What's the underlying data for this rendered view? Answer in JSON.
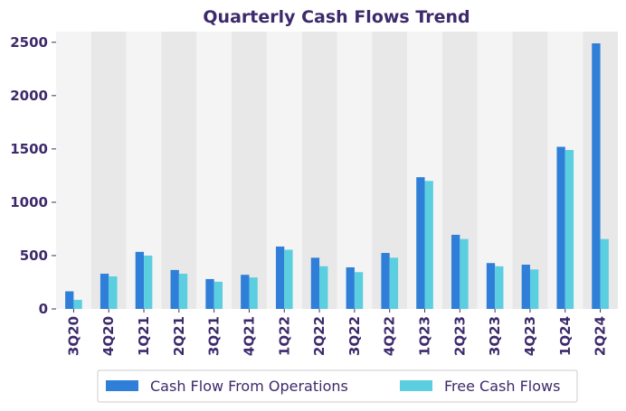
{
  "chart_data": {
    "type": "bar",
    "title": "Quarterly Cash Flows Trend",
    "xlabel": "",
    "ylabel": "",
    "categories": [
      "3Q20",
      "4Q20",
      "1Q21",
      "2Q21",
      "3Q21",
      "4Q21",
      "1Q22",
      "2Q22",
      "3Q22",
      "4Q22",
      "1Q23",
      "2Q23",
      "3Q23",
      "4Q23",
      "1Q24",
      "2Q24"
    ],
    "series": [
      {
        "name": "Cash Flow From Operations",
        "color": "#2f7fd8",
        "values": [
          165,
          330,
          535,
          365,
          280,
          320,
          585,
          480,
          390,
          525,
          1235,
          695,
          430,
          415,
          1520,
          2490
        ]
      },
      {
        "name": "Free Cash Flows",
        "color": "#5bcee0",
        "values": [
          85,
          305,
          500,
          330,
          255,
          295,
          555,
          400,
          345,
          480,
          1200,
          655,
          400,
          370,
          1490,
          655
        ]
      }
    ],
    "ylim": [
      0,
      2600
    ],
    "yticks": [
      0,
      500,
      1000,
      1500,
      2000,
      2500
    ],
    "grid": false,
    "legend_position": "bottom-center",
    "band_colors": [
      "#f4f4f4",
      "#e8e8e8"
    ]
  }
}
